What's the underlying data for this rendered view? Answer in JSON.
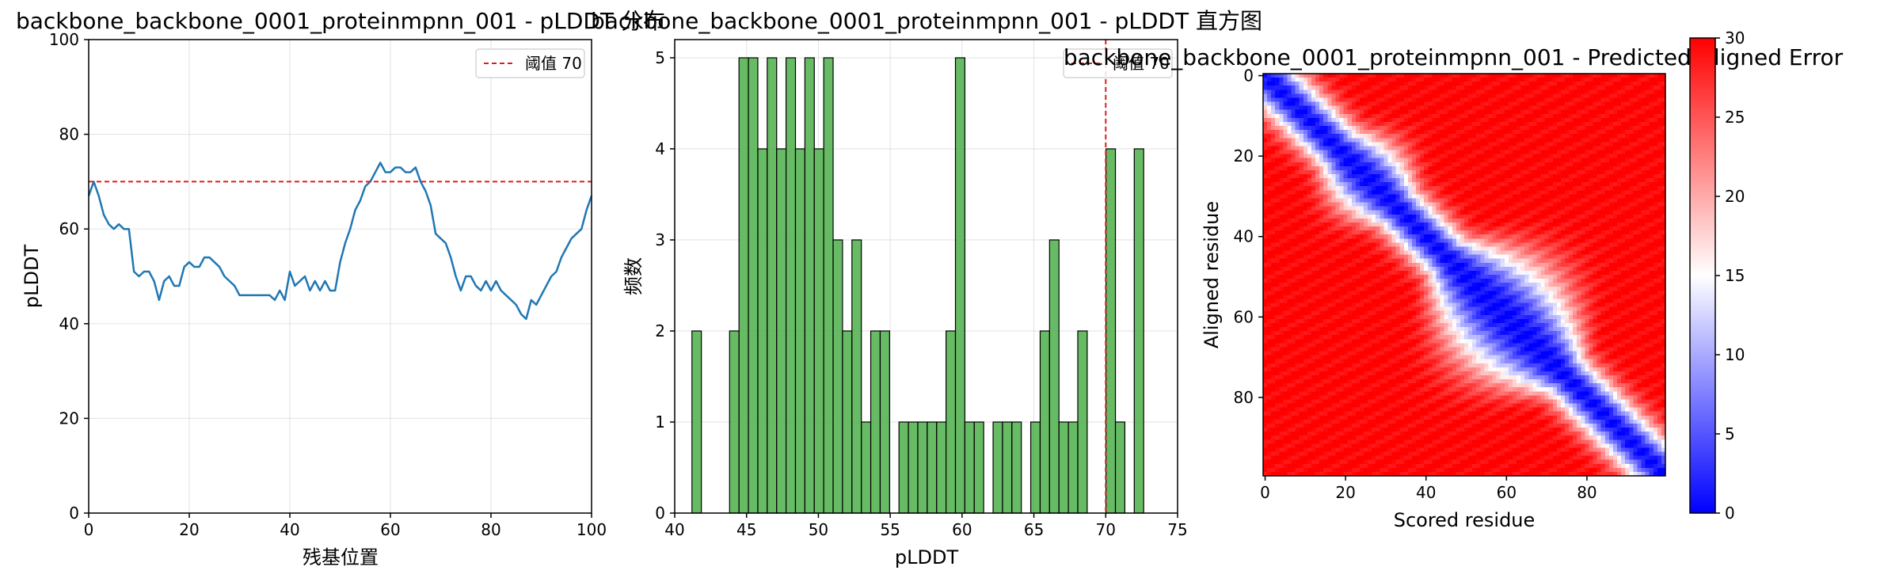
{
  "chart_data": [
    {
      "type": "line",
      "title": "backbone_backbone_0001_proteinmpnn_001 - pLDDT 分布",
      "xlabel": "残基位置",
      "ylabel": "pLDDT",
      "xlim": [
        0,
        100
      ],
      "ylim": [
        0,
        100
      ],
      "xticks": [
        "0",
        "20",
        "40",
        "60",
        "80",
        "100"
      ],
      "yticks": [
        "0",
        "20",
        "40",
        "60",
        "80",
        "100"
      ],
      "grid": true,
      "legend_position": "top-right",
      "colors": {
        "line": "#1f77b4",
        "threshold": "#e31a1c"
      },
      "series": [
        {
          "values": [
            67,
            70,
            67,
            63,
            61,
            60,
            61,
            60,
            60,
            51,
            50,
            51,
            51,
            49,
            45,
            49,
            50,
            48,
            48,
            52,
            53,
            52,
            52,
            54,
            54,
            53,
            52,
            50,
            49,
            48,
            46,
            46,
            46,
            46,
            46,
            46,
            46,
            45,
            47,
            45,
            51,
            48,
            49,
            50,
            47,
            49,
            47,
            49,
            47,
            47,
            53,
            57,
            60,
            64,
            66,
            69,
            70,
            72,
            74,
            72,
            72,
            73,
            73,
            72,
            72,
            73,
            70,
            68,
            65,
            59,
            58,
            57,
            54,
            50,
            47,
            50,
            50,
            48,
            47,
            49,
            47,
            49,
            47,
            46,
            45,
            44,
            42,
            41,
            45,
            44,
            46,
            48,
            50,
            51,
            54,
            56,
            58,
            59,
            60,
            64,
            67
          ]
        }
      ],
      "threshold": {
        "value": 70,
        "label": "阈值 70"
      }
    },
    {
      "type": "bar",
      "title": "backbone_backbone_0001_proteinmpnn_001 - pLDDT 直方图",
      "xlabel": "pLDDT",
      "ylabel": "频数",
      "xlim": [
        40,
        75
      ],
      "ylim": [
        0,
        5.2
      ],
      "xticks": [
        "40",
        "45",
        "50",
        "55",
        "60",
        "65",
        "70",
        "75"
      ],
      "yticks": [
        "0",
        "1",
        "2",
        "3",
        "4",
        "5"
      ],
      "grid": true,
      "legend_position": "top-right",
      "colors": {
        "bar": "#4daf4a",
        "edge": "#000000",
        "threshold": "#e31a1c"
      },
      "bin_start": 41.2,
      "bin_width": 0.655,
      "counts": [
        2,
        0,
        0,
        0,
        2,
        5,
        5,
        4,
        5,
        4,
        5,
        4,
        5,
        4,
        5,
        3,
        2,
        3,
        1,
        2,
        2,
        0,
        1,
        1,
        1,
        1,
        1,
        2,
        5,
        1,
        1,
        0,
        1,
        1,
        1,
        0,
        1,
        2,
        3,
        1,
        1,
        2,
        0,
        0,
        4,
        1,
        0,
        4
      ],
      "threshold": {
        "value": 70,
        "label": "阈值 70"
      }
    },
    {
      "type": "heatmap",
      "title": "backbone_backbone_0001_proteinmpnn_001 - Predicted Aligned Error",
      "xlabel": "Scored residue",
      "ylabel": "Aligned residue",
      "xticks": [
        "0",
        "20",
        "40",
        "60",
        "80"
      ],
      "yticks": [
        "0",
        "20",
        "40",
        "60",
        "80"
      ],
      "size": 100,
      "colormap": "bwr",
      "vmin": 0,
      "vmax": 30,
      "colorbar_ticks": [
        "0",
        "5",
        "10",
        "15",
        "20",
        "25",
        "30"
      ]
    }
  ]
}
